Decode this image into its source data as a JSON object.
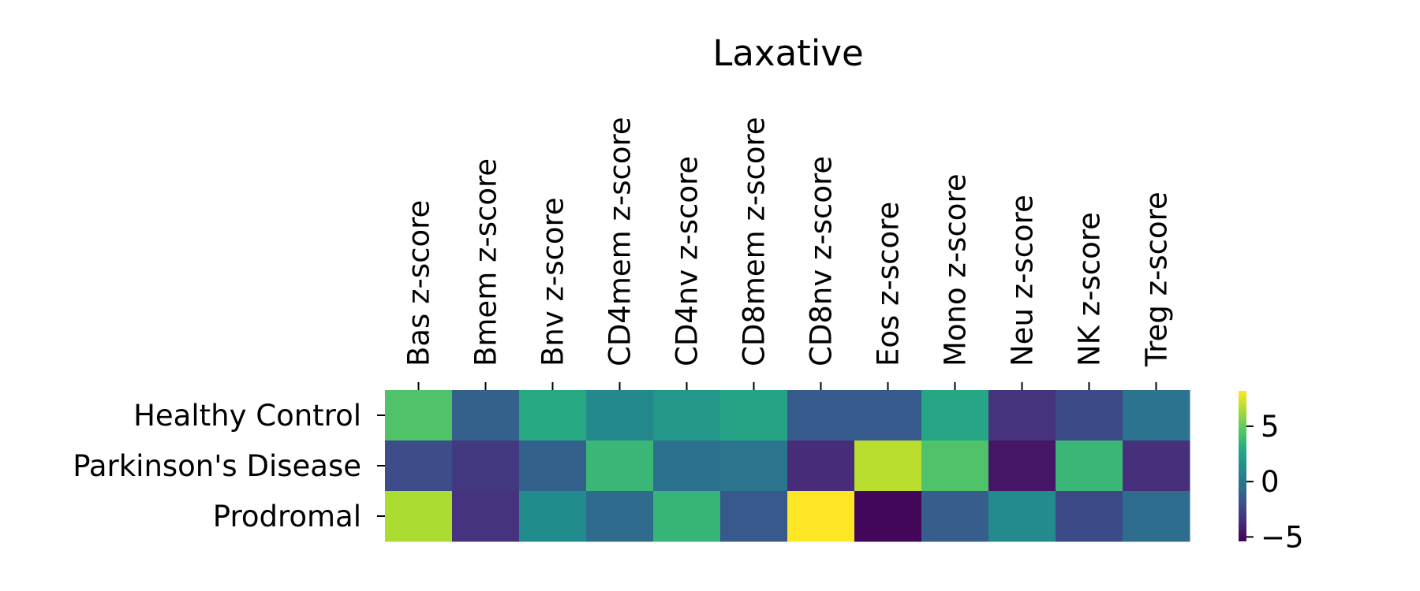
{
  "chart_data": {
    "type": "heatmap",
    "title": "Laxative",
    "columns": [
      "Bas z-score",
      "Bmem z-score",
      "Bnv z-score",
      "CD4mem z-score",
      "CD4nv z-score",
      "CD8mem z-score",
      "CD8nv z-score",
      "Eos z-score",
      "Mono z-score",
      "Neu z-score",
      "NK z-score",
      "Treg z-score"
    ],
    "rows": [
      "Healthy Control",
      "Parkinson's Disease",
      "Prodromal"
    ],
    "values": [
      [
        4.4,
        -1.2,
        2.8,
        1.0,
        1.8,
        2.5,
        -1.5,
        -1.5,
        2.7,
        -3.4,
        -2.3,
        -0.2
      ],
      [
        -2.2,
        -3.1,
        -1.2,
        3.7,
        -0.3,
        -0.1,
        -3.7,
        6.8,
        4.4,
        -4.6,
        3.7,
        -3.5
      ],
      [
        6.5,
        -3.4,
        1.2,
        -0.6,
        3.6,
        -1.6,
        8.2,
        -5.2,
        -1.3,
        1.1,
        -2.3,
        -0.5
      ]
    ],
    "colorbar": {
      "colormap": "viridis",
      "range": [
        -5.4,
        8.2
      ],
      "ticks": [
        5,
        0,
        -5
      ],
      "tick_labels": [
        "5",
        "0",
        "−5"
      ]
    },
    "grid": false
  }
}
